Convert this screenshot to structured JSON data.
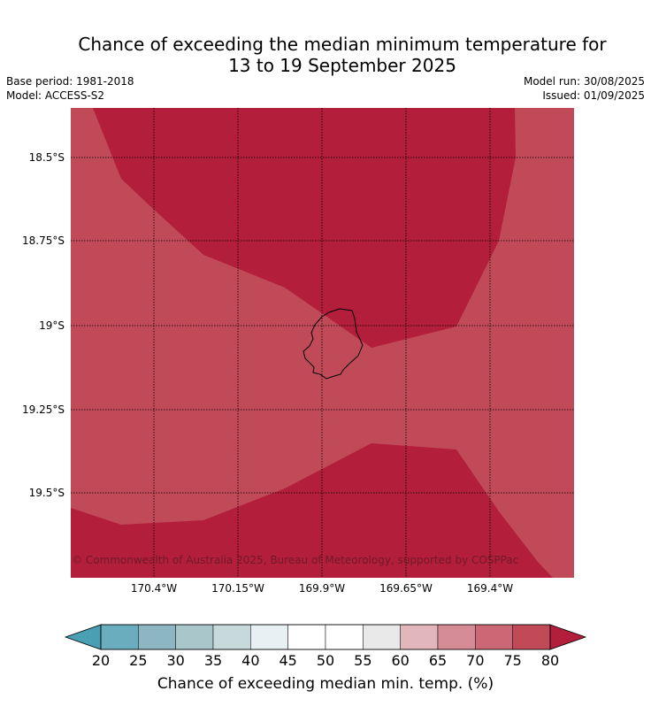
{
  "title": {
    "line1": "Chance of exceeding the median minimum temperature for",
    "line2": "13 to 19 September 2025"
  },
  "meta": {
    "base_period": "Base period: 1981-2018",
    "model": "Model: ACCESS-S2",
    "model_run": "Model run: 30/08/2025",
    "issued": "Issued: 01/09/2025"
  },
  "map": {
    "copyright": "© Commonwealth of Australia 2025, Bureau of Meteorology, supported by COSPPac",
    "lat_labels": [
      "18.5°S",
      "18.75°S",
      "19°S",
      "19.25°S",
      "19.5°S"
    ],
    "lon_labels": [
      "170.4°W",
      "170.15°W",
      "169.9°W",
      "169.65°W",
      "169.4°W"
    ],
    "gridlines": "dotted",
    "region_categories": [
      {
        "range": "75-80",
        "color": "#c14a58"
      },
      {
        "range": ">80",
        "color": "#b31e3a"
      }
    ]
  },
  "colorbar": {
    "label": "Chance of exceeding median min. temp. (%)",
    "ticks": [
      "20",
      "25",
      "30",
      "35",
      "40",
      "45",
      "50",
      "55",
      "60",
      "65",
      "70",
      "75",
      "80"
    ],
    "colors": [
      "#6aadbe",
      "#8bb6c2",
      "#a9c6cb",
      "#c8d9dc",
      "#e7f0f2",
      "#ffffff",
      "#ffffff",
      "#e9e9e9",
      "#e2b7bc",
      "#d68c96",
      "#cc6875",
      "#c14a58"
    ],
    "under_color": "#4aa0b2",
    "over_color": "#b31e3a"
  }
}
